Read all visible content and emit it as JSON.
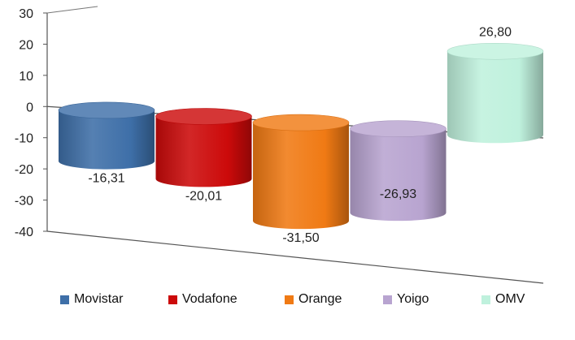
{
  "chart_data": {
    "type": "bar",
    "style": "3d-cylinder",
    "categories": [
      "Movistar",
      "Vodafone",
      "Orange",
      "Yoigo",
      "OMV"
    ],
    "values": [
      -16.31,
      -20.01,
      -31.5,
      -26.93,
      26.8
    ],
    "value_labels": [
      "-16,31",
      "-20,01",
      "-31,50",
      "-26,93",
      "26,80"
    ],
    "colors": [
      "#3e6fa8",
      "#cc0a0a",
      "#f07a14",
      "#b8a4d0",
      "#bff1dd"
    ],
    "ylim": [
      -40,
      30
    ],
    "yticks": [
      "30",
      "20",
      "10",
      "0",
      "-10",
      "-20",
      "-30",
      "-40"
    ],
    "grid": false,
    "legend_position": "bottom"
  },
  "legend": [
    {
      "label": "Movistar",
      "color": "#3e6fa8"
    },
    {
      "label": "Vodafone",
      "color": "#cc0a0a"
    },
    {
      "label": "Orange",
      "color": "#f07a14"
    },
    {
      "label": "Yoigo",
      "color": "#b8a4d0"
    },
    {
      "label": "OMV",
      "color": "#bff1dd"
    }
  ]
}
